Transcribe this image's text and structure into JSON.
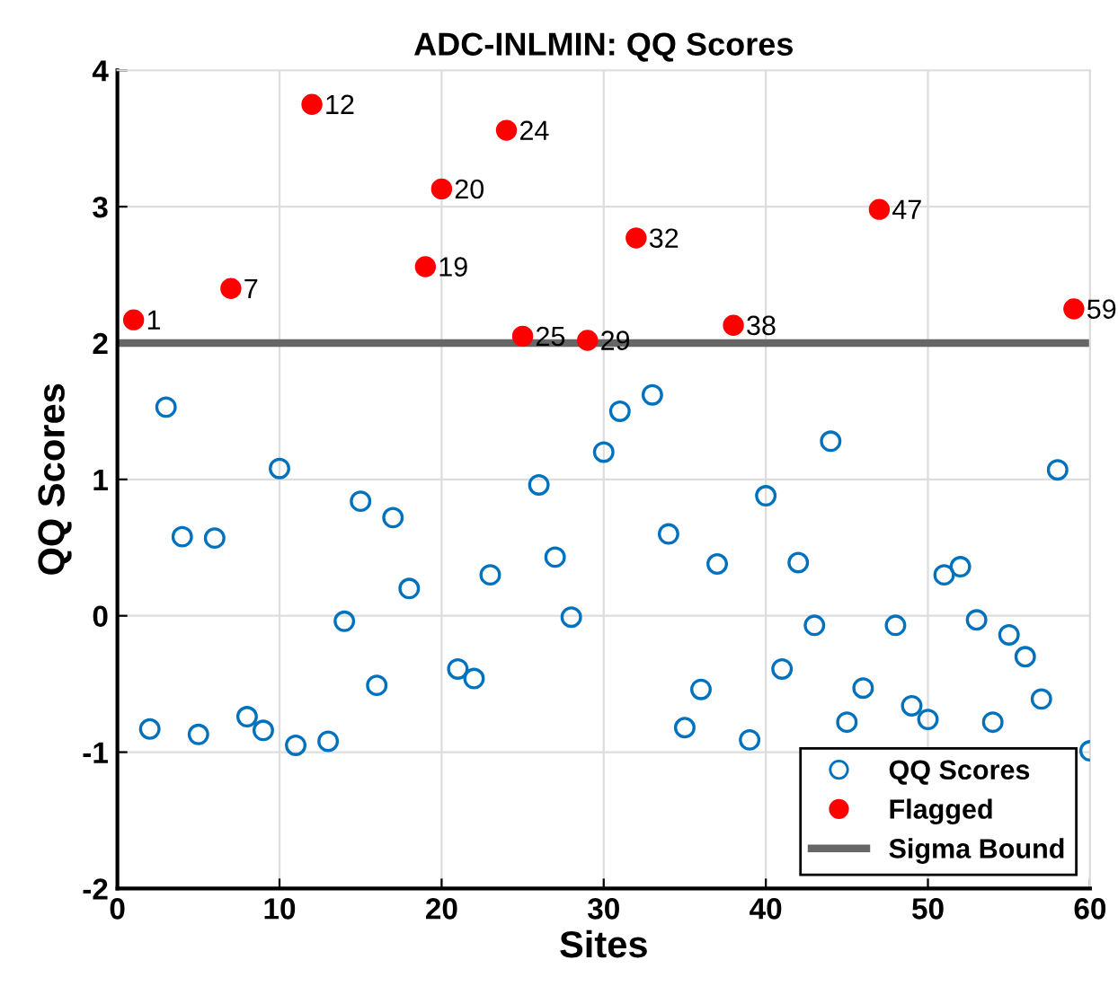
{
  "chart_data": {
    "type": "scatter",
    "title": "ADC-INLMIN: QQ Scores",
    "xlabel": "Sites",
    "ylabel": "QQ Scores",
    "xlim": [
      0,
      60
    ],
    "ylim": [
      -2,
      4
    ],
    "xticks": [
      0,
      10,
      20,
      30,
      40,
      50,
      60
    ],
    "yticks": [
      -2,
      -1,
      0,
      1,
      2,
      3,
      4
    ],
    "grid": true,
    "legend": "bottom right",
    "series": [
      {
        "name": "QQ Scores",
        "color": "#0072bd",
        "marker": "circle",
        "x": [
          2,
          3,
          4,
          5,
          6,
          8,
          9,
          10,
          11,
          13,
          14,
          15,
          16,
          17,
          18,
          21,
          22,
          23,
          26,
          27,
          28,
          30,
          31,
          33,
          34,
          35,
          36,
          37,
          39,
          40,
          41,
          42,
          43,
          44,
          45,
          46,
          48,
          49,
          50,
          51,
          52,
          53,
          54,
          55,
          56,
          57,
          58,
          60
        ],
        "values": [
          -0.83,
          1.53,
          0.58,
          -0.87,
          0.57,
          -0.74,
          -0.84,
          1.08,
          -0.95,
          -0.92,
          -0.04,
          0.84,
          -0.51,
          0.72,
          0.2,
          -0.39,
          -0.46,
          0.3,
          0.96,
          0.43,
          -0.01,
          1.2,
          1.5,
          1.62,
          0.6,
          -0.82,
          -0.54,
          0.38,
          -0.91,
          0.88,
          -0.39,
          0.39,
          -0.07,
          1.28,
          -0.78,
          -0.53,
          -0.07,
          -0.66,
          -0.76,
          0.3,
          0.36,
          -0.03,
          -0.78,
          -0.14,
          -0.3,
          -0.61,
          1.07,
          -0.99
        ]
      },
      {
        "name": "Flagged",
        "color": "#ff0000",
        "marker": "circle",
        "x": [
          1,
          7,
          12,
          19,
          20,
          24,
          25,
          29,
          32,
          38,
          47,
          59
        ],
        "values": [
          2.17,
          2.4,
          3.75,
          2.56,
          3.13,
          3.56,
          2.05,
          2.02,
          2.77,
          2.13,
          2.98,
          2.25
        ]
      }
    ],
    "ref_lines": [
      {
        "axis": "y",
        "value": 2,
        "label": "Sigma Bound",
        "color": "#666666"
      }
    ],
    "annotations": [
      {
        "text": "1",
        "x": 1,
        "y": 2.17
      },
      {
        "text": "7",
        "x": 7,
        "y": 2.4
      },
      {
        "text": "12",
        "x": 12,
        "y": 3.75
      },
      {
        "text": "19",
        "x": 19,
        "y": 2.56
      },
      {
        "text": "20",
        "x": 20,
        "y": 3.13
      },
      {
        "text": "24",
        "x": 24,
        "y": 3.56
      },
      {
        "text": "25",
        "x": 25,
        "y": 2.05
      },
      {
        "text": "29",
        "x": 29,
        "y": 2.02
      },
      {
        "text": "32",
        "x": 32,
        "y": 2.77
      },
      {
        "text": "38",
        "x": 38,
        "y": 2.13
      },
      {
        "text": "47",
        "x": 47,
        "y": 2.98
      },
      {
        "text": "59",
        "x": 59,
        "y": 2.25
      }
    ]
  }
}
